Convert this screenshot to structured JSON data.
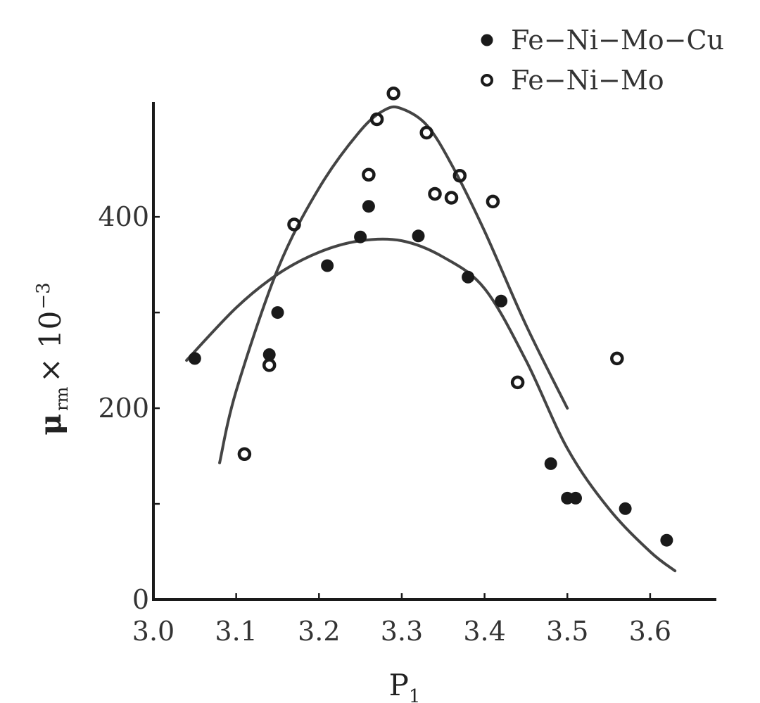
{
  "chart_data": {
    "type": "scatter",
    "title": "",
    "xlabel": "P",
    "xlabel_sub": "1",
    "ylabel": "μ",
    "ylabel_sub": "rm",
    "ylabel_suffix": "× 10",
    "ylabel_sup": "−3",
    "xlim": [
      3.0,
      3.68
    ],
    "ylim": [
      0,
      520
    ],
    "x_ticks": [
      3.0,
      3.1,
      3.2,
      3.3,
      3.4,
      3.5,
      3.6
    ],
    "x_tick_labels": [
      "3.0",
      "3.1",
      "3.2",
      "3.3",
      "3.4",
      "3.5",
      "3.6"
    ],
    "y_ticks": [
      0,
      100,
      200,
      300,
      400
    ],
    "y_tick_labels": [
      "0",
      "",
      "200",
      "",
      "400"
    ],
    "grid": false,
    "legend_position": "top-right",
    "series": [
      {
        "name": "Fe−Ni−Mo−Cu",
        "marker": "filled-circle",
        "color": "#1a1a1a",
        "points": [
          [
            3.05,
            252
          ],
          [
            3.14,
            256
          ],
          [
            3.15,
            300
          ],
          [
            3.21,
            349
          ],
          [
            3.25,
            379
          ],
          [
            3.26,
            411
          ],
          [
            3.32,
            380
          ],
          [
            3.38,
            337
          ],
          [
            3.42,
            312
          ],
          [
            3.48,
            142
          ],
          [
            3.5,
            106
          ],
          [
            3.51,
            106
          ],
          [
            3.57,
            95
          ],
          [
            3.62,
            62
          ]
        ],
        "fit_curve": [
          [
            3.04,
            250
          ],
          [
            3.1,
            305
          ],
          [
            3.15,
            340
          ],
          [
            3.2,
            363
          ],
          [
            3.25,
            375
          ],
          [
            3.3,
            375
          ],
          [
            3.35,
            358
          ],
          [
            3.4,
            325
          ],
          [
            3.45,
            250
          ],
          [
            3.5,
            158
          ],
          [
            3.55,
            95
          ],
          [
            3.6,
            50
          ],
          [
            3.63,
            30
          ]
        ]
      },
      {
        "name": "Fe−Ni−Mo",
        "marker": "open-circle",
        "color": "#1a1a1a",
        "points": [
          [
            3.11,
            152
          ],
          [
            3.14,
            245
          ],
          [
            3.17,
            392
          ],
          [
            3.26,
            444
          ],
          [
            3.27,
            502
          ],
          [
            3.29,
            529
          ],
          [
            3.33,
            488
          ],
          [
            3.34,
            424
          ],
          [
            3.36,
            420
          ],
          [
            3.37,
            443
          ],
          [
            3.41,
            416
          ],
          [
            3.44,
            227
          ],
          [
            3.56,
            252
          ]
        ],
        "fit_curve": [
          [
            3.08,
            143
          ],
          [
            3.1,
            218
          ],
          [
            3.15,
            345
          ],
          [
            3.2,
            430
          ],
          [
            3.25,
            490
          ],
          [
            3.28,
            512
          ],
          [
            3.3,
            513
          ],
          [
            3.33,
            496
          ],
          [
            3.36,
            455
          ],
          [
            3.4,
            385
          ],
          [
            3.45,
            287
          ],
          [
            3.5,
            200
          ]
        ]
      }
    ]
  }
}
